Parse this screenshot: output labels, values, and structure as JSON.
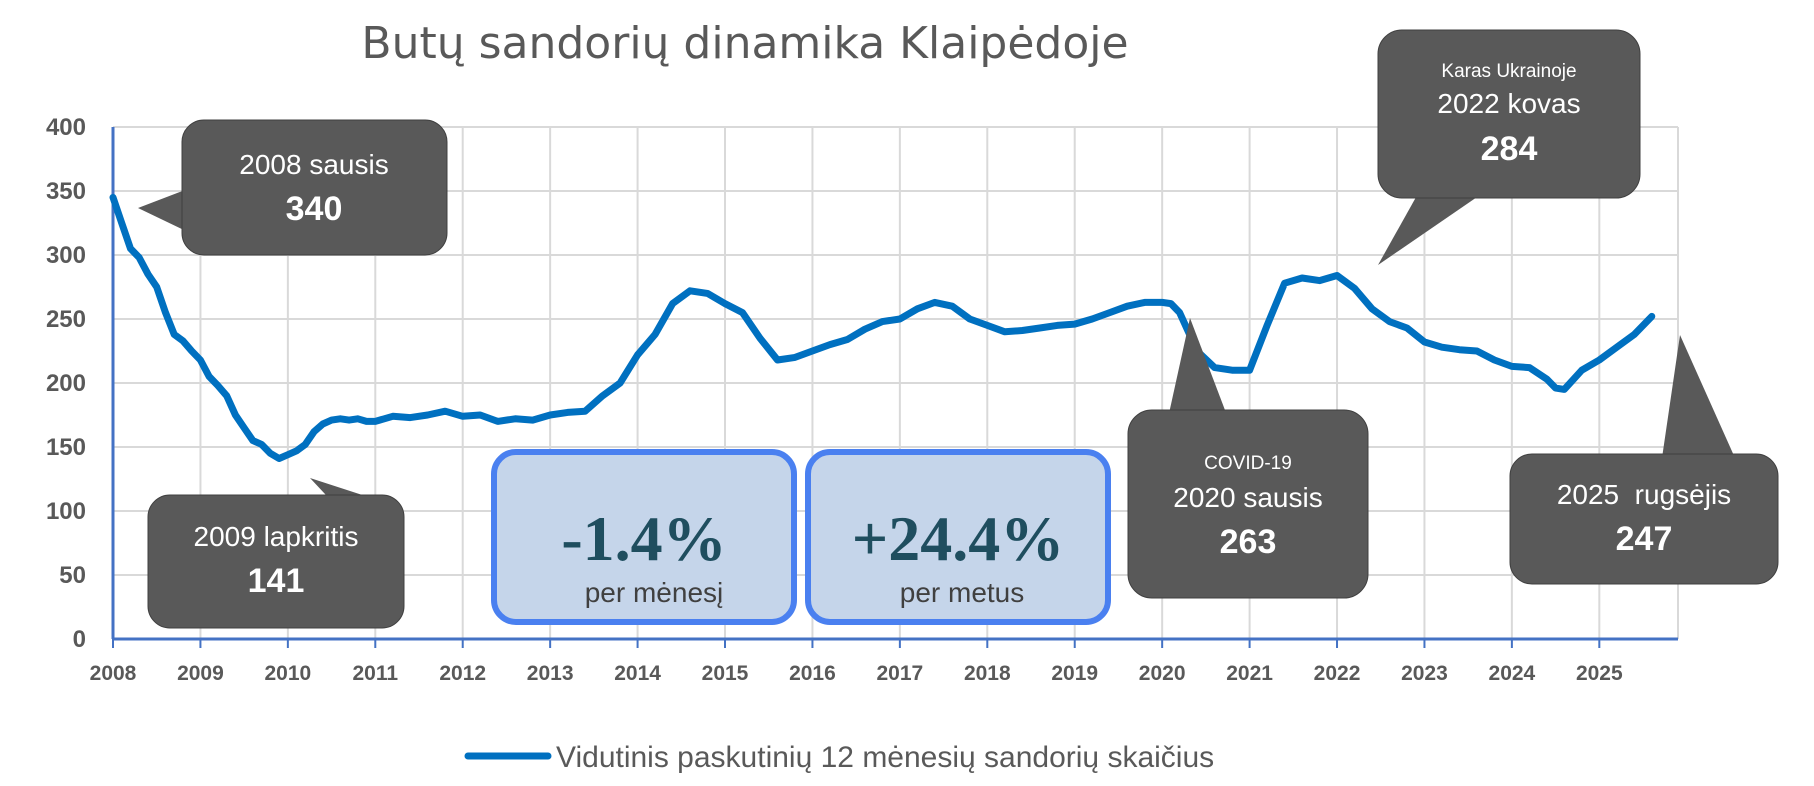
{
  "chart_data": {
    "type": "line",
    "title": "Butų sandorių dinamika Klaipėdoje",
    "xlabel": "",
    "ylabel": "",
    "ylim": [
      0,
      400
    ],
    "xlim": [
      2008,
      2025.9
    ],
    "grid": true,
    "legend_placement": "bottom-center",
    "y_ticks": [
      "0",
      "50",
      "100",
      "150",
      "200",
      "250",
      "300",
      "350",
      "400"
    ],
    "x_ticks": [
      "2008",
      "2009",
      "2010",
      "2011",
      "2012",
      "2013",
      "2014",
      "2015",
      "2016",
      "2017",
      "2018",
      "2019",
      "2020",
      "2021",
      "2022",
      "2023",
      "2024",
      "2025"
    ],
    "series": [
      {
        "name": "Vidutinis paskutinių 12 mėnesių sandorių skaičius",
        "color": "#0070c0",
        "x": [
          2008.0,
          2008.1,
          2008.2,
          2008.3,
          2008.4,
          2008.5,
          2008.6,
          2008.7,
          2008.8,
          2008.9,
          2009.0,
          2009.1,
          2009.2,
          2009.3,
          2009.4,
          2009.5,
          2009.6,
          2009.7,
          2009.8,
          2009.9,
          2010.0,
          2010.1,
          2010.2,
          2010.3,
          2010.4,
          2010.5,
          2010.6,
          2010.7,
          2010.8,
          2010.9,
          2011.0,
          2011.2,
          2011.4,
          2011.6,
          2011.8,
          2012.0,
          2012.2,
          2012.4,
          2012.6,
          2012.8,
          2013.0,
          2013.2,
          2013.4,
          2013.6,
          2013.8,
          2014.0,
          2014.2,
          2014.4,
          2014.6,
          2014.8,
          2015.0,
          2015.2,
          2015.4,
          2015.6,
          2015.8,
          2016.0,
          2016.2,
          2016.4,
          2016.6,
          2016.8,
          2017.0,
          2017.2,
          2017.4,
          2017.6,
          2017.8,
          2018.0,
          2018.2,
          2018.4,
          2018.6,
          2018.8,
          2019.0,
          2019.2,
          2019.4,
          2019.6,
          2019.8,
          2020.0,
          2020.1,
          2020.2,
          2020.4,
          2020.6,
          2020.8,
          2021.0,
          2021.2,
          2021.4,
          2021.6,
          2021.8,
          2022.0,
          2022.2,
          2022.4,
          2022.6,
          2022.8,
          2023.0,
          2023.2,
          2023.4,
          2023.6,
          2023.8,
          2024.0,
          2024.2,
          2024.4,
          2024.5,
          2024.6,
          2024.8,
          2025.0,
          2025.2,
          2025.4,
          2025.6
        ],
        "y": [
          345,
          325,
          305,
          298,
          285,
          275,
          255,
          238,
          233,
          225,
          218,
          205,
          198,
          190,
          175,
          165,
          155,
          152,
          145,
          141,
          144,
          147,
          152,
          162,
          168,
          171,
          172,
          171,
          172,
          170,
          170,
          174,
          173,
          175,
          178,
          174,
          175,
          170,
          172,
          171,
          175,
          177,
          178,
          190,
          200,
          222,
          238,
          262,
          272,
          270,
          262,
          255,
          235,
          218,
          220,
          225,
          230,
          234,
          242,
          248,
          250,
          258,
          263,
          260,
          250,
          245,
          240,
          241,
          243,
          245,
          246,
          250,
          255,
          260,
          263,
          263,
          262,
          255,
          225,
          212,
          210,
          210,
          245,
          278,
          282,
          280,
          284,
          274,
          258,
          248,
          243,
          232,
          228,
          226,
          225,
          218,
          213,
          212,
          203,
          196,
          195,
          210,
          218,
          228,
          238,
          252
        ]
      }
    ],
    "annotations": [
      {
        "label": "2008 sausis",
        "value": "340"
      },
      {
        "label": "2009 lapkritis",
        "value": "141"
      },
      {
        "label": "2020 sausis",
        "value": "263",
        "note": "COVID-19"
      },
      {
        "label": "2022 kovas",
        "value": "284",
        "note": "Karas Ukrainoje"
      },
      {
        "label": "2025  rugsėjis",
        "value": "247"
      }
    ]
  },
  "stats": {
    "monthly": {
      "value": "-1.4%",
      "label": "per mėnesį"
    },
    "yearly": {
      "value": "+24.4%",
      "label": "per metus"
    }
  },
  "colors": {
    "line": "#0070c0",
    "grid": "#d9d9d9",
    "axis": "#4472c4",
    "callout": "#595959",
    "stat_fill": "#c5d5ea",
    "stat_border": "#4a80f0"
  }
}
